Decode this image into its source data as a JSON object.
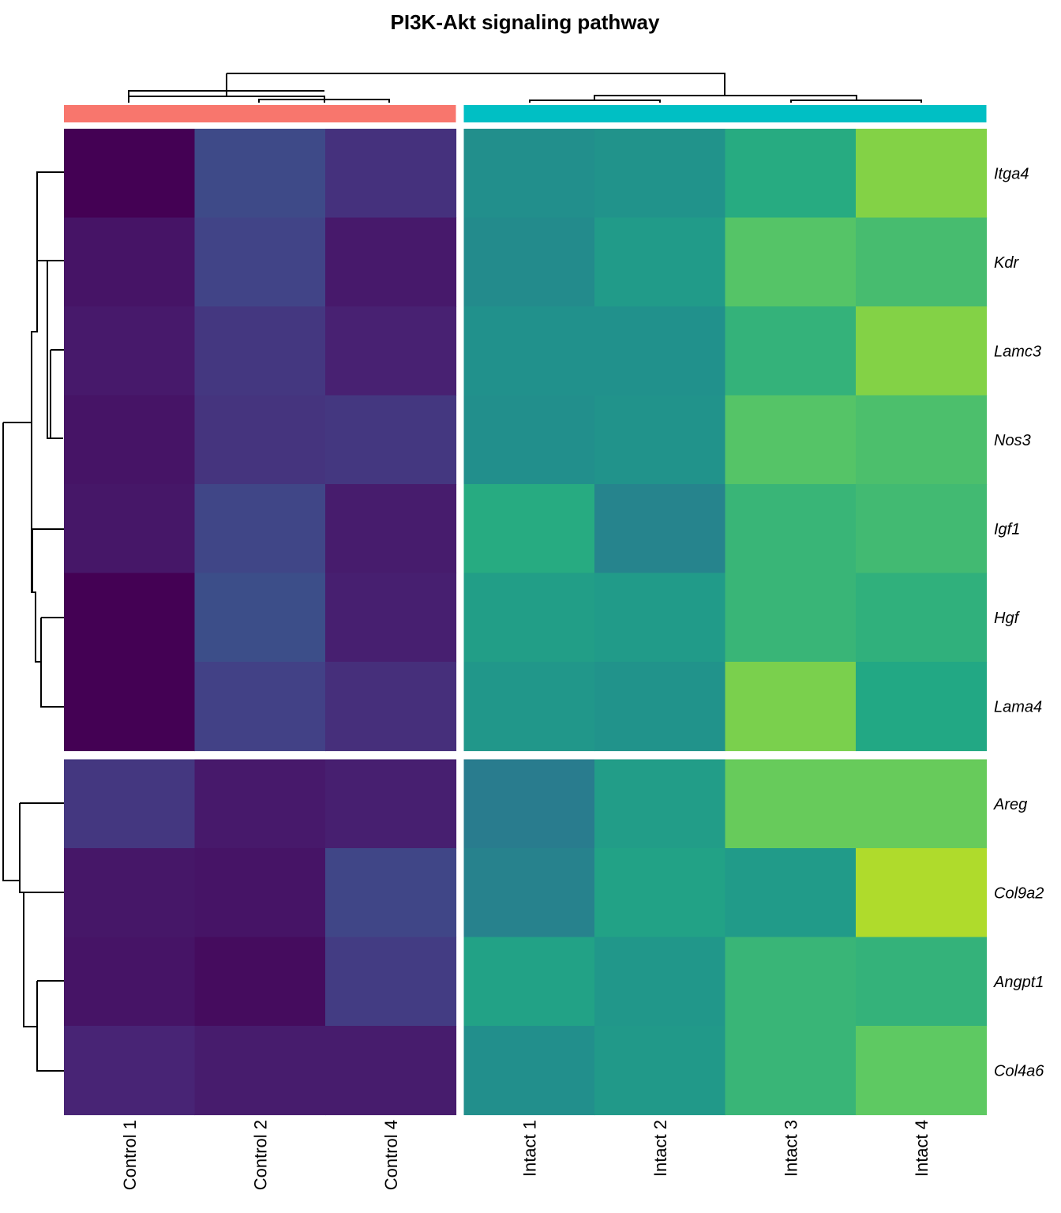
{
  "chart_data": {
    "type": "heatmap",
    "title": "PI3K-Akt signaling pathway",
    "columns": [
      "Control 1",
      "Control 2",
      "Control 4",
      "Intact 1",
      "Intact 2",
      "Intact 3",
      "Intact 4"
    ],
    "rows": [
      "Itga4",
      "Kdr",
      "Lamc3",
      "Nos3",
      "Igf1",
      "Hgf",
      "Lama4",
      "Areg",
      "Col9a2",
      "Angpt1",
      "Col4a6"
    ],
    "column_groups": [
      {
        "columns": [
          "Control 1",
          "Control 2",
          "Control 4"
        ],
        "color": "#F8766D"
      },
      {
        "columns": [
          "Intact 1",
          "Intact 2",
          "Intact 3",
          "Intact 4"
        ],
        "color": "#00BFC4"
      }
    ],
    "row_groups": [
      {
        "rows": [
          "Itga4",
          "Kdr",
          "Lamc3",
          "Nos3",
          "Igf1",
          "Hgf",
          "Lama4"
        ]
      },
      {
        "rows": [
          "Areg",
          "Col9a2",
          "Angpt1",
          "Col4a6"
        ]
      }
    ],
    "colormap": "viridis",
    "values": [
      [
        0.0,
        0.28,
        0.18,
        0.62,
        0.64,
        0.76,
        0.92
      ],
      [
        0.07,
        0.25,
        0.09,
        0.6,
        0.68,
        0.86,
        0.83
      ],
      [
        0.09,
        0.2,
        0.12,
        0.63,
        0.63,
        0.79,
        0.92
      ],
      [
        0.07,
        0.19,
        0.2,
        0.62,
        0.64,
        0.86,
        0.84
      ],
      [
        0.08,
        0.26,
        0.1,
        0.76,
        0.56,
        0.8,
        0.82
      ],
      [
        0.0,
        0.3,
        0.11,
        0.7,
        0.68,
        0.8,
        0.78
      ],
      [
        0.0,
        0.24,
        0.17,
        0.66,
        0.64,
        0.91,
        0.75
      ],
      [
        0.2,
        0.09,
        0.11,
        0.52,
        0.69,
        0.89,
        0.89
      ],
      [
        0.08,
        0.07,
        0.26,
        0.55,
        0.72,
        0.68,
        0.97
      ],
      [
        0.07,
        0.04,
        0.22,
        0.72,
        0.66,
        0.8,
        0.79
      ],
      [
        0.13,
        0.1,
        0.1,
        0.62,
        0.67,
        0.8,
        0.88
      ]
    ]
  }
}
